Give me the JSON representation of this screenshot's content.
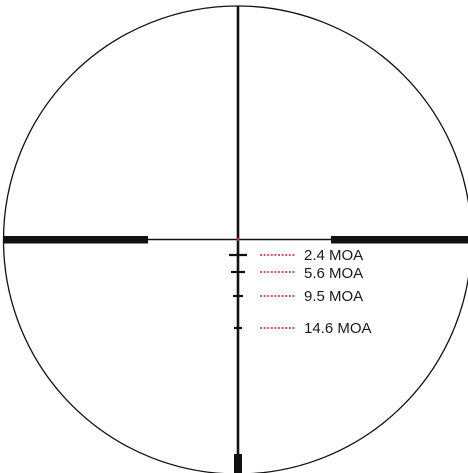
{
  "reticle": {
    "line_color": "#111111",
    "leader_color": "#c0282d",
    "center_dot_color": "#c0282d",
    "holdover_marks": [
      {
        "label": "2.4 MOA"
      },
      {
        "label": "5.6 MOA"
      },
      {
        "label": "9.5 MOA"
      },
      {
        "label": "14.6 MOA"
      }
    ]
  }
}
